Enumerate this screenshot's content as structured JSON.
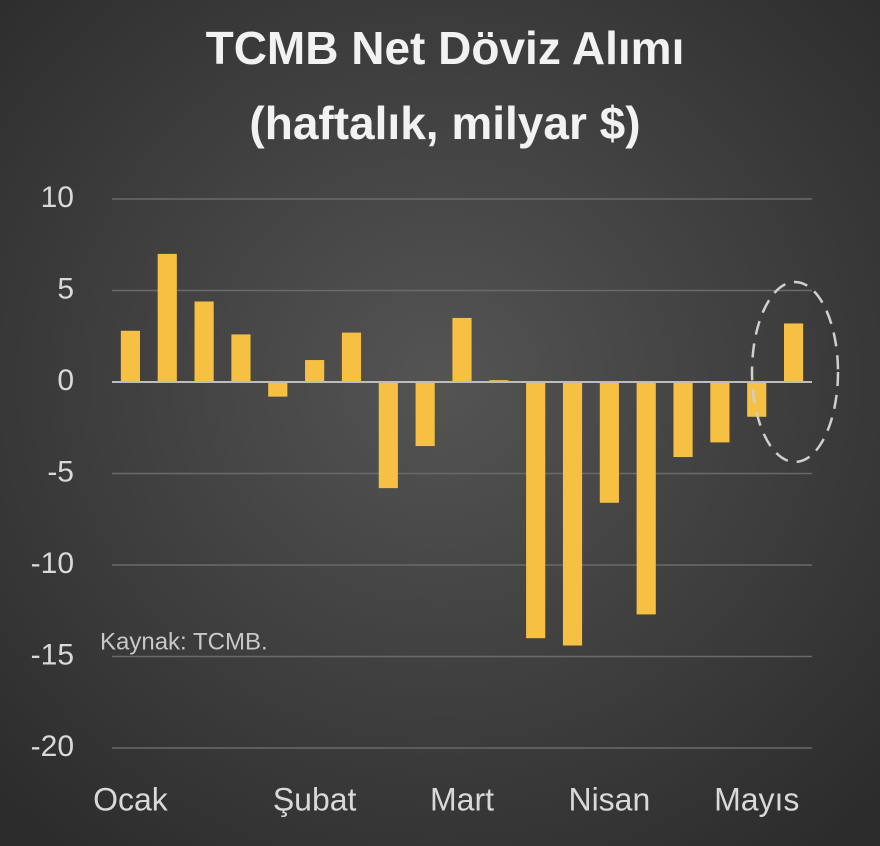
{
  "chart_data": {
    "type": "bar",
    "title_lines": [
      "TCMB Net Döviz Alımı",
      "(haftalık, milyar $)"
    ],
    "annotation": "Kaynak: TCMB.",
    "categories": [
      "Ocak",
      null,
      null,
      null,
      null,
      "Şubat",
      null,
      null,
      null,
      "Mart",
      null,
      null,
      null,
      "Nisan",
      null,
      null,
      null,
      "Mayıs",
      null
    ],
    "values": [
      2.8,
      7.0,
      4.4,
      2.6,
      -0.8,
      1.2,
      2.7,
      -5.8,
      -3.5,
      3.5,
      0.1,
      -14.0,
      -14.4,
      -6.6,
      -12.7,
      -4.1,
      -3.3,
      -1.9,
      3.2
    ],
    "color": "#f6c142",
    "ylim": [
      -20,
      10
    ],
    "yticks": [
      10,
      5,
      0,
      -5,
      -10,
      -15,
      -20
    ],
    "grid": true
  }
}
